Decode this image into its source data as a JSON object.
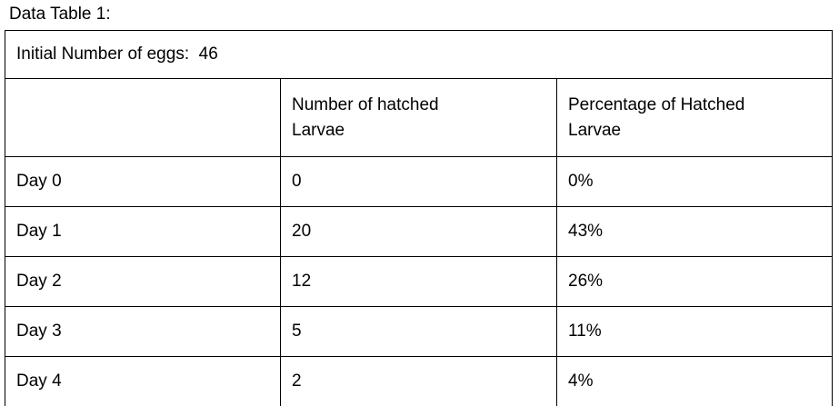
{
  "caption": "Data Table 1:",
  "table": {
    "summary": "Initial Number of eggs:  46",
    "columns": [
      "",
      "Number of hatched\nLarvae",
      "Percentage of Hatched\nLarvae"
    ],
    "rows": [
      {
        "day": "Day 0",
        "hatched": "0",
        "percent": "0%"
      },
      {
        "day": "Day 1",
        "hatched": "20",
        "percent": "43%"
      },
      {
        "day": "Day 2",
        "hatched": "12",
        "percent": "26%"
      },
      {
        "day": "Day 3",
        "hatched": "5",
        "percent": "11%"
      },
      {
        "day": "Day 4",
        "hatched": "2",
        "percent": "4%"
      }
    ]
  },
  "colors": {
    "background": "#ffffff",
    "border": "#000000",
    "text": "#000000"
  }
}
